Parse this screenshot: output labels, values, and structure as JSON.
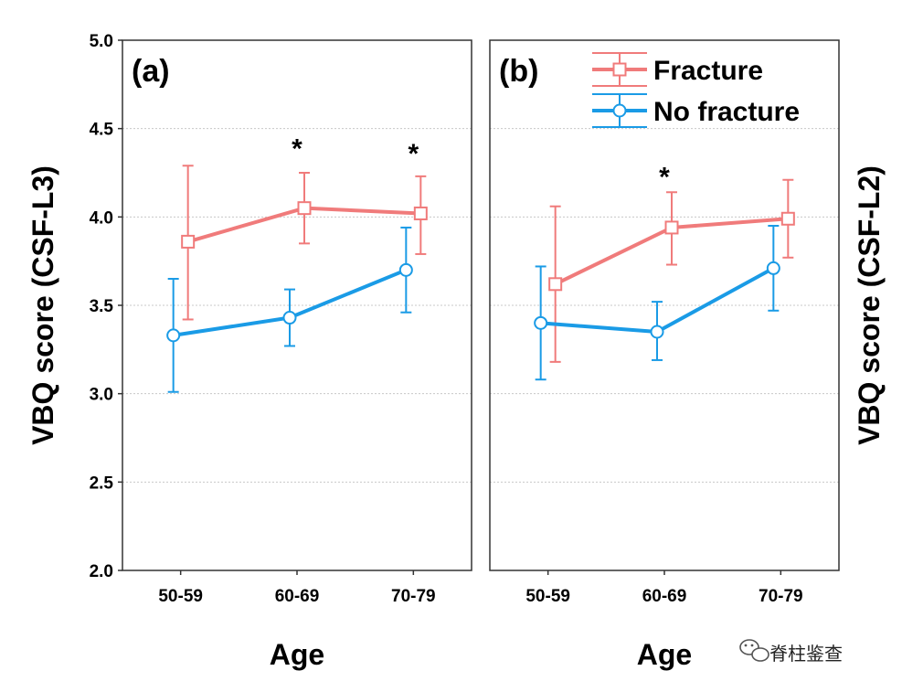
{
  "colors": {
    "fracture": "#f07b7b",
    "no_fracture": "#1a9be6",
    "grid": "#c8c8c8"
  },
  "chart_data": [
    {
      "type": "line",
      "panel_label": "(a)",
      "xlabel": "Age",
      "ylabel": "VBQ score (CSF-L3)",
      "ylabel_side": "left",
      "categories": [
        "50-59",
        "60-69",
        "70-79"
      ],
      "ylim": [
        2.0,
        5.0
      ],
      "yticks": [
        "2.0",
        "2.5",
        "3.0",
        "3.5",
        "4.0",
        "4.5",
        "5.0"
      ],
      "grid": true,
      "series": [
        {
          "name": "Fracture",
          "marker": "square",
          "color": "#f07b7b",
          "values": [
            3.86,
            4.05,
            4.02
          ],
          "lower": [
            3.42,
            3.85,
            3.79
          ],
          "upper": [
            4.29,
            4.25,
            4.23
          ]
        },
        {
          "name": "No fracture",
          "marker": "circle",
          "color": "#1a9be6",
          "values": [
            3.33,
            3.43,
            3.7
          ],
          "lower": [
            3.01,
            3.27,
            3.46
          ],
          "upper": [
            3.65,
            3.59,
            3.94
          ]
        }
      ],
      "annotations": [
        {
          "text": "*",
          "category": "60-69",
          "y": 4.45
        },
        {
          "text": "*",
          "category": "70-79",
          "y": 4.42
        }
      ]
    },
    {
      "type": "line",
      "panel_label": "(b)",
      "xlabel": "Age",
      "ylabel": "VBQ score (CSF-L2)",
      "ylabel_side": "right",
      "categories": [
        "50-59",
        "60-69",
        "70-79"
      ],
      "ylim": [
        2.0,
        5.0
      ],
      "yticks": [],
      "grid": true,
      "legend": "top-right",
      "series": [
        {
          "name": "Fracture",
          "marker": "square",
          "color": "#f07b7b",
          "values": [
            3.62,
            3.94,
            3.99
          ],
          "lower": [
            3.18,
            3.73,
            3.77
          ],
          "upper": [
            4.06,
            4.14,
            4.21
          ]
        },
        {
          "name": "No fracture",
          "marker": "circle",
          "color": "#1a9be6",
          "values": [
            3.4,
            3.35,
            3.71
          ],
          "lower": [
            3.08,
            3.19,
            3.47
          ],
          "upper": [
            3.72,
            3.52,
            3.95
          ]
        }
      ],
      "annotations": [
        {
          "text": "*",
          "category": "60-69",
          "y": 4.29
        }
      ]
    }
  ],
  "watermark": {
    "text": "脊柱鉴查",
    "icon": "wechat-icon"
  }
}
